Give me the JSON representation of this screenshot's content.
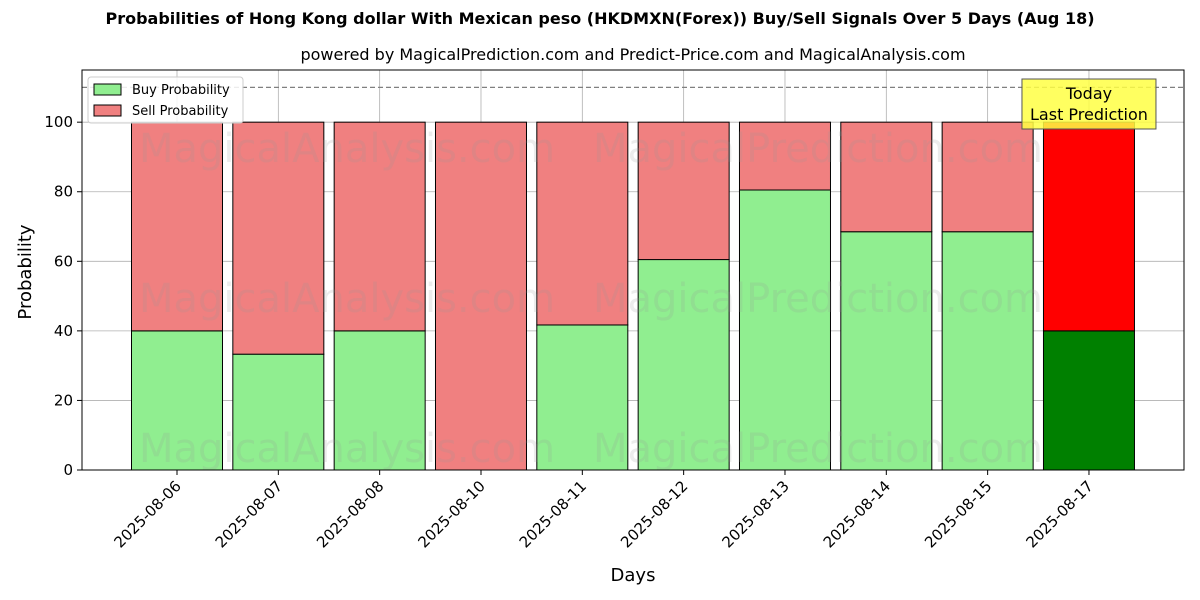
{
  "chart_data": {
    "type": "bar",
    "stacked": true,
    "title": "Probabilities of Hong Kong dollar With Mexican peso (HKDMXN(Forex)) Buy/Sell Signals Over 5 Days (Aug 18)",
    "subtitle": "powered by MagicalPrediction.com and Predict-Price.com and MagicalAnalysis.com",
    "xlabel": "Days",
    "ylabel": "Probability",
    "ylim": [
      0,
      115
    ],
    "yticks": [
      0,
      20,
      40,
      60,
      80,
      100
    ],
    "grid": true,
    "legend_position": "top-left",
    "reference_line": 110,
    "categories": [
      "2025-08-06",
      "2025-08-07",
      "2025-08-08",
      "2025-08-10",
      "2025-08-11",
      "2025-08-12",
      "2025-08-13",
      "2025-08-14",
      "2025-08-15",
      "2025-08-17"
    ],
    "series": [
      {
        "name": "Buy Probability",
        "color": "#90ee90",
        "values": [
          40,
          33.3,
          40,
          0,
          41.7,
          60.5,
          80.5,
          68.5,
          68.5,
          40
        ]
      },
      {
        "name": "Sell Probability",
        "color": "#f08080",
        "values": [
          60,
          66.7,
          60,
          100,
          58.3,
          39.5,
          19.5,
          31.5,
          31.5,
          60
        ]
      }
    ],
    "highlight": {
      "index": 9,
      "buy_color": "#008000",
      "sell_color": "#ff0000",
      "annotation_lines": [
        "Today",
        "Last Prediction"
      ],
      "annotation_color": "#ffff44"
    },
    "watermarks": [
      "MagicalAnalysis.com",
      "MagicalPrediction.com",
      "MagicalAnalysis.com",
      "MagicalPrediction.com",
      "MagicalAnalysis.com",
      "MagicalPrediction.com"
    ]
  }
}
